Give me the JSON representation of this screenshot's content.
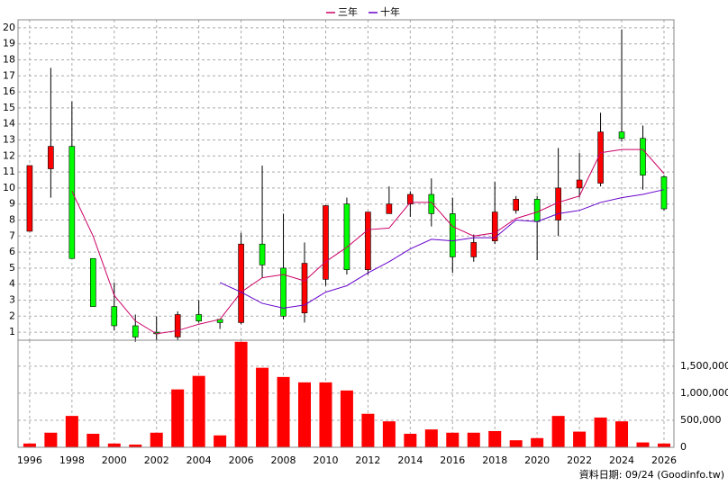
{
  "chart_data": [
    {
      "type": "candlestick",
      "x": [
        1996,
        1997,
        1998,
        1999,
        2000,
        2001,
        2002,
        2003,
        2004,
        2005,
        2006,
        2007,
        2008,
        2009,
        2010,
        2011,
        2012,
        2013,
        2014,
        2015,
        2016,
        2017,
        2018,
        2019,
        2020,
        2021,
        2022,
        2023,
        2024,
        2025,
        2026
      ],
      "open": [
        7.3,
        11.2,
        12.6,
        5.6,
        2.6,
        1.4,
        1.0,
        0.7,
        2.1,
        1.8,
        1.6,
        6.5,
        5.0,
        2.2,
        4.3,
        9.0,
        4.9,
        8.4,
        9.0,
        9.6,
        8.4,
        5.7,
        6.7,
        8.6,
        9.3,
        8.0,
        10.0,
        10.3,
        13.5,
        13.1,
        10.7
      ],
      "high": [
        11.4,
        17.5,
        15.4,
        5.6,
        4.1,
        2.1,
        2.0,
        2.3,
        3.0,
        1.8,
        7.2,
        11.4,
        8.4,
        6.6,
        8.9,
        9.4,
        8.5,
        10.1,
        9.8,
        10.6,
        9.4,
        7.1,
        10.4,
        9.5,
        9.5,
        12.5,
        12.2,
        14.7,
        19.9,
        13.9,
        10.8
      ],
      "low": [
        7.3,
        9.4,
        5.6,
        2.6,
        1.1,
        0.4,
        0.5,
        0.5,
        1.6,
        1.2,
        1.5,
        4.4,
        1.8,
        1.6,
        3.9,
        4.6,
        4.6,
        8.4,
        8.2,
        7.6,
        4.7,
        5.4,
        6.5,
        8.4,
        5.5,
        7.0,
        9.4,
        10.1,
        12.9,
        9.9,
        8.6
      ],
      "close": [
        11.4,
        12.6,
        5.6,
        2.6,
        1.4,
        0.7,
        0.9,
        2.1,
        1.7,
        1.6,
        6.5,
        5.2,
        2.0,
        5.3,
        8.9,
        4.9,
        8.5,
        9.0,
        9.6,
        8.4,
        5.7,
        6.6,
        8.5,
        9.3,
        7.9,
        10.0,
        10.5,
        13.5,
        13.1,
        10.8,
        8.7
      ],
      "up_color": "#ff0000",
      "down_color": "#00ff00",
      "series": [
        {
          "name": "三年",
          "color": "#cc0066",
          "values": [
            null,
            null,
            9.8,
            7.0,
            3.3,
            1.7,
            0.9,
            1.1,
            1.5,
            1.8,
            3.5,
            4.4,
            4.6,
            4.2,
            5.4,
            6.3,
            7.4,
            7.5,
            9.1,
            9.1,
            7.6,
            7.0,
            7.2,
            8.1,
            8.5,
            9.1,
            9.5,
            12.2,
            12.4,
            12.4,
            10.9
          ]
        },
        {
          "name": "十年",
          "color": "#6600cc",
          "values": [
            null,
            null,
            null,
            null,
            null,
            null,
            null,
            null,
            null,
            4.1,
            3.5,
            2.8,
            2.5,
            2.7,
            3.5,
            3.9,
            4.7,
            5.4,
            6.2,
            6.8,
            6.7,
            6.9,
            6.9,
            8.0,
            7.9,
            8.4,
            8.6,
            9.1,
            9.4,
            9.6,
            9.9
          ]
        }
      ],
      "xlim": [
        1995.45,
        2026.47
      ],
      "ylim": [
        0.5,
        20.5
      ],
      "yticks": [
        1,
        2,
        3,
        4,
        5,
        6,
        7,
        8,
        9,
        10,
        11,
        12,
        13,
        14,
        15,
        16,
        17,
        18,
        19,
        20
      ],
      "grid": true,
      "legend": "top"
    },
    {
      "type": "bar",
      "x": [
        1996,
        1997,
        1998,
        1999,
        2000,
        2001,
        2002,
        2003,
        2004,
        2005,
        2006,
        2007,
        2008,
        2009,
        2010,
        2011,
        2012,
        2013,
        2014,
        2015,
        2016,
        2017,
        2018,
        2019,
        2020,
        2021,
        2022,
        2023,
        2024,
        2025,
        2026
      ],
      "values": [
        70000,
        270000,
        580000,
        250000,
        70000,
        50000,
        270000,
        1070000,
        1320000,
        220000,
        1950000,
        1470000,
        1300000,
        1200000,
        1200000,
        1050000,
        620000,
        480000,
        250000,
        330000,
        270000,
        270000,
        300000,
        130000,
        170000,
        580000,
        290000,
        550000,
        480000,
        90000,
        70000
      ],
      "color": "#ff0000",
      "xlim": [
        1995.45,
        2026.47
      ],
      "ylim": [
        0,
        1980000
      ],
      "yticks": [
        0,
        {
          "value": 500000,
          "label": "500,000"
        },
        {
          "value": 1000000,
          "label": "1,000,000"
        },
        {
          "value": 1500000,
          "label": "1,500,000"
        }
      ],
      "xticks": [
        1996,
        1998,
        2000,
        2002,
        2004,
        2006,
        2008,
        2010,
        2012,
        2014,
        2016,
        2018,
        2020,
        2022,
        2024,
        2026
      ],
      "grid": true
    }
  ],
  "footer": "資料日期: 09/24 (Goodinfo.tw)"
}
